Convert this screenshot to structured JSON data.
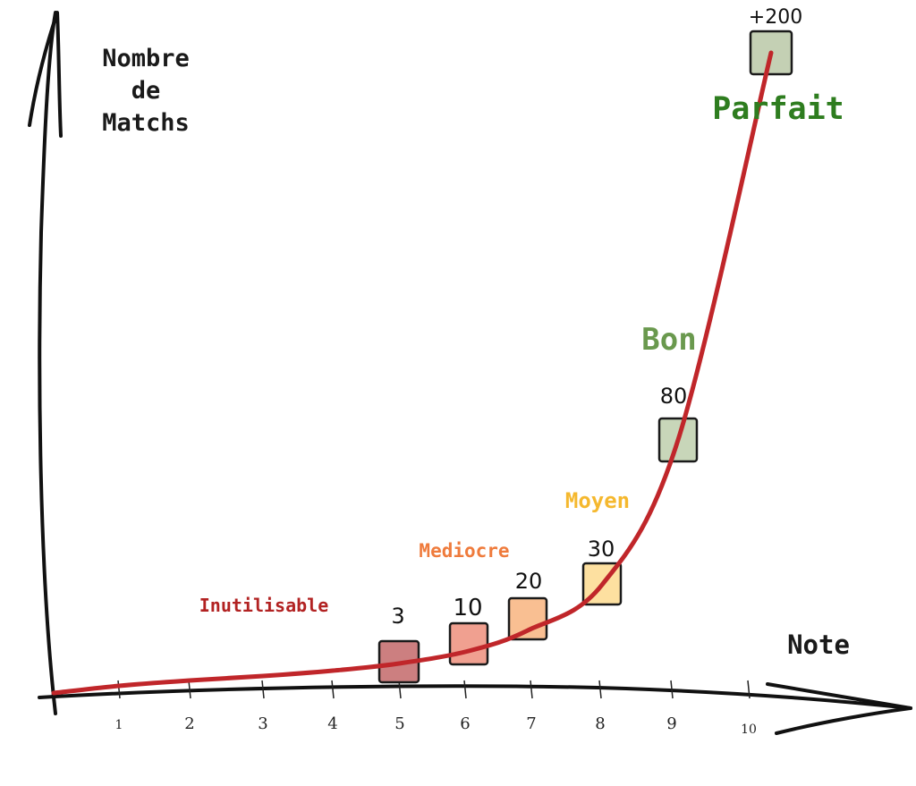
{
  "chart_data": {
    "type": "line",
    "title": "",
    "ylabel_lines": [
      "Nombre",
      "de",
      "Matchs"
    ],
    "xlabel": "Note",
    "x_ticks": [
      "1",
      "2",
      "3",
      "4",
      "5",
      "6",
      "7",
      "8",
      "9",
      "10"
    ],
    "series": [
      {
        "x": [
          0,
          1,
          2,
          3,
          4,
          5,
          6,
          7,
          8,
          9,
          10
        ],
        "y": [
          0,
          1,
          1.5,
          2,
          2.5,
          3,
          10,
          20,
          30,
          80,
          200
        ]
      }
    ],
    "markers": [
      {
        "x": 5,
        "value_label": "3",
        "color": "#cc7f80"
      },
      {
        "x": 6,
        "value_label": "10",
        "color": "#f0a090"
      },
      {
        "x": 7,
        "value_label": "20",
        "color": "#f9bf92"
      },
      {
        "x": 8,
        "value_label": "30",
        "color": "#fde0a0"
      },
      {
        "x": 9,
        "value_label": "80",
        "color": "#c8d6b9"
      },
      {
        "x": 10,
        "value_label": "+200",
        "color": "#c4d0b4"
      }
    ],
    "categories": [
      {
        "label": "Inutilisable",
        "color": "#b22222"
      },
      {
        "label": "Mediocre",
        "color": "#ef7b3c"
      },
      {
        "label": "Moyen",
        "color": "#f5b82e"
      },
      {
        "label": "Bon",
        "color": "#6a994e"
      },
      {
        "label": "Parfait",
        "color": "#2e7d1f"
      }
    ],
    "curve_color": "#c0262a",
    "axis_color": "#111111"
  }
}
